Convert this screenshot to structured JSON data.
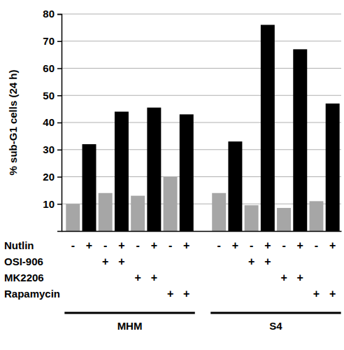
{
  "chart_data": {
    "type": "bar",
    "y_label": "% sub-G1 cells (24 h)",
    "categories": [
      null,
      null,
      null,
      null,
      null,
      null,
      null,
      null,
      null,
      null,
      null,
      null,
      null,
      null,
      null,
      null
    ],
    "values": [
      10,
      32,
      14,
      44,
      13,
      45.5,
      20,
      43,
      14,
      33,
      9.5,
      76,
      8.5,
      67,
      11,
      47
    ],
    "colors": [
      "#a6a6a6",
      "#000000",
      "#a6a6a6",
      "#000000",
      "#a6a6a6",
      "#000000",
      "#a6a6a6",
      "#000000",
      "#a6a6a6",
      "#000000",
      "#a6a6a6",
      "#000000",
      "#a6a6a6",
      "#000000",
      "#a6a6a6",
      "#000000"
    ],
    "ylim": [
      0,
      80
    ],
    "yticks": [
      10,
      20,
      30,
      40,
      50,
      60,
      70,
      80
    ],
    "grid": true,
    "treatments": [
      {
        "label": "Nutlin",
        "marks": [
          "-",
          "+",
          "-",
          "+",
          "-",
          "+",
          "-",
          "+",
          "-",
          "+",
          "-",
          "+",
          "-",
          "+",
          "-",
          "+"
        ]
      },
      {
        "label": "OSI-906",
        "marks": [
          null,
          null,
          "+",
          "+",
          null,
          null,
          null,
          null,
          null,
          null,
          "+",
          "+",
          null,
          null,
          null,
          null
        ]
      },
      {
        "label": "MK2206",
        "marks": [
          null,
          null,
          null,
          null,
          "+",
          "+",
          null,
          null,
          null,
          null,
          null,
          null,
          "+",
          "+",
          null,
          null
        ]
      },
      {
        "label": "Rapamycin",
        "marks": [
          null,
          null,
          null,
          null,
          null,
          null,
          "+",
          "+",
          null,
          null,
          null,
          null,
          null,
          null,
          "+",
          "+"
        ]
      }
    ],
    "groups": [
      {
        "label": "MHM",
        "size": 8
      },
      {
        "label": "S4",
        "size": 8
      }
    ]
  }
}
